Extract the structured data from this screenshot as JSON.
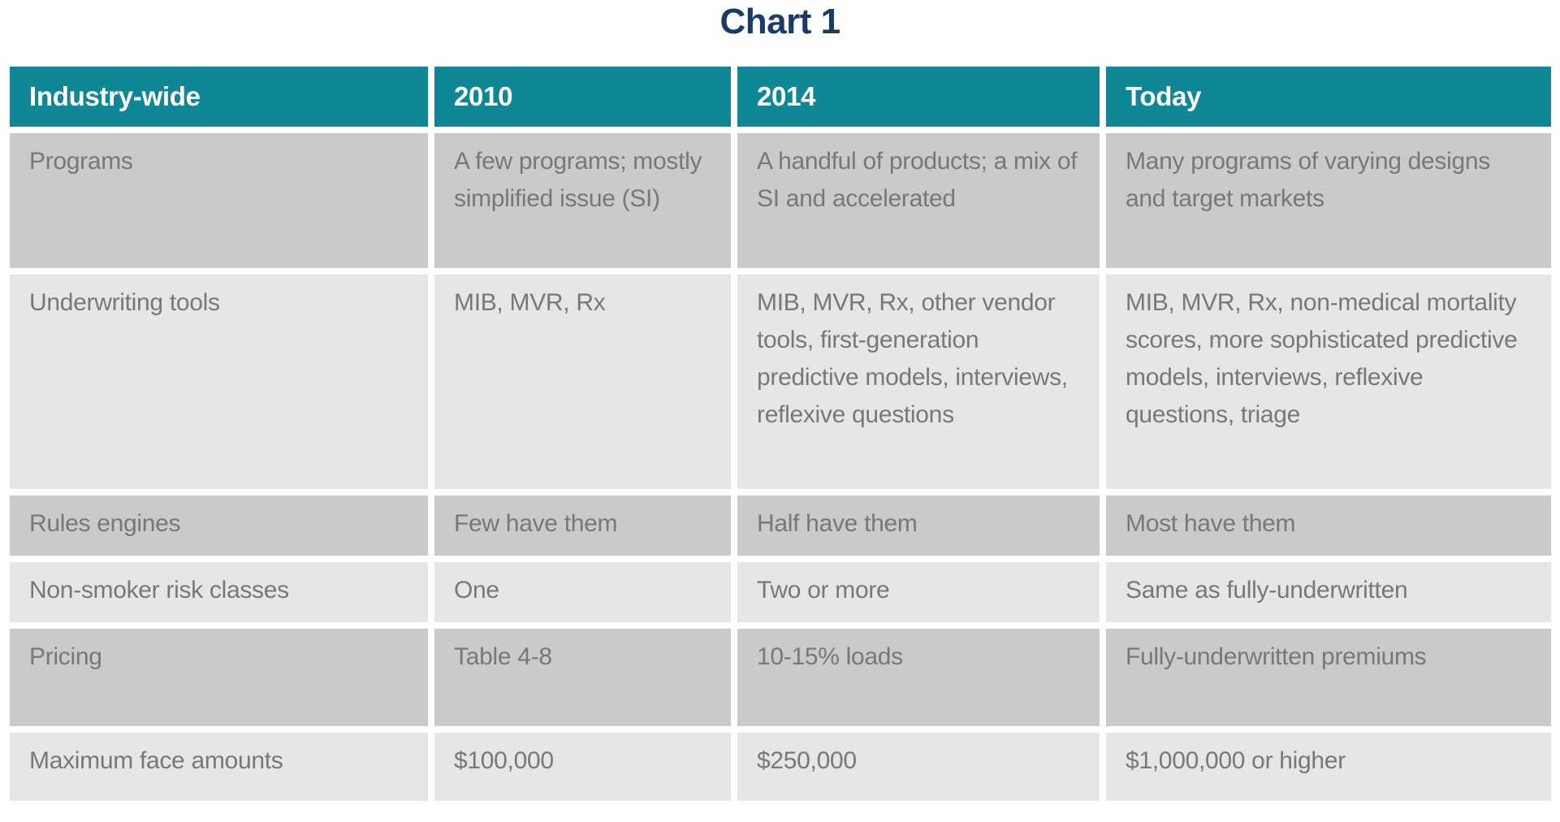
{
  "title": "Chart 1",
  "colors": {
    "header_bg": "#0f8794",
    "header_text": "#ffffff",
    "row_dark_bg": "#c9cacb",
    "row_light_bg": "#e5e6e8",
    "body_text": "#77787b",
    "title_text": "#1b3a64",
    "page_bg": "#ffffff"
  },
  "chart_data": {
    "type": "table",
    "title": "Chart 1",
    "columns": [
      "Industry-wide",
      "2010",
      "2014",
      "Today"
    ],
    "rows": [
      [
        "Programs",
        "A few programs; mostly simplified issue (SI)",
        "A handful of products; a mix of SI and accelerated",
        "Many programs of varying designs and target markets"
      ],
      [
        "Underwriting tools",
        "MIB, MVR, Rx",
        "MIB, MVR, Rx, other vendor tools, first-generation predictive models, interviews, reflexive questions",
        "MIB, MVR, Rx, non-medical mortality scores, more sophisticated predictive models, interviews, reflexive questions, triage"
      ],
      [
        "Rules engines",
        "Few have them",
        "Half have them",
        "Most have them"
      ],
      [
        "Non-smoker risk classes",
        "One",
        "Two or more",
        "Same as fully-underwritten"
      ],
      [
        "Pricing",
        "Table 4-8",
        "10-15% loads",
        "Fully-underwritten premiums"
      ],
      [
        "Maximum face amounts",
        "$100,000",
        "$250,000",
        "$1,000,000 or higher"
      ]
    ],
    "layout": {
      "header_style": "teal band, white bold text",
      "row_striping": "alternating dark/light gray starting dark",
      "cell_gaps": "8px white spacing between all cells"
    }
  }
}
